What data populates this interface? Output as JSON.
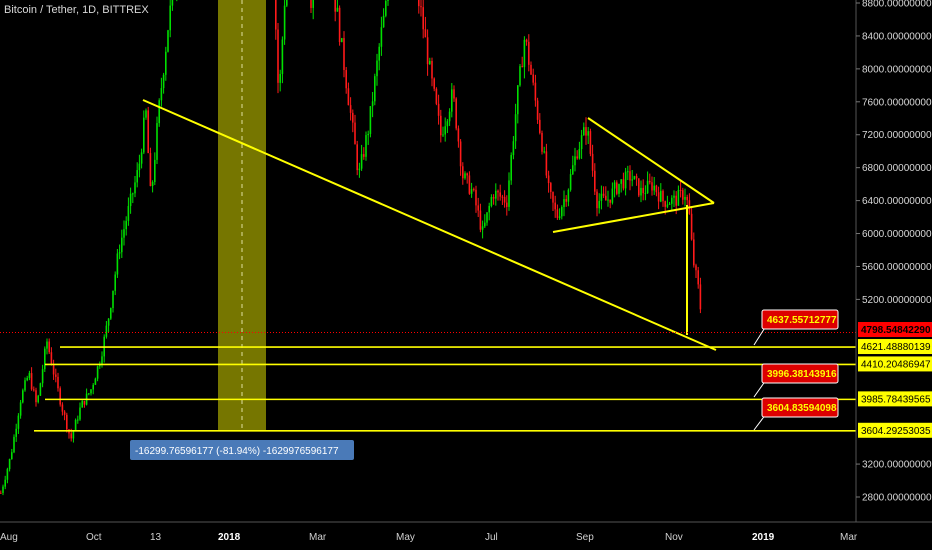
{
  "header": {
    "title": "Bitcoin / Tether, 1D, BITTREX"
  },
  "chart_data": {
    "type": "candlestick",
    "instrument": "Bitcoin / Tether, 1D, BITTREX",
    "x_tick_labels": [
      "Aug",
      "Oct",
      "13",
      "2018",
      "Mar",
      "May",
      "Jul",
      "Sep",
      "Nov",
      "2019",
      "Mar"
    ],
    "y_tick_labels": [
      "8800.00000000",
      "8400.00000000",
      "8000.00000000",
      "7600.00000000",
      "7200.00000000",
      "6800.00000000",
      "6400.00000000",
      "6000.00000000",
      "5600.00000000",
      "5200.00000000",
      "3200.00000000",
      "2800.00000000"
    ],
    "y_tick_values": [
      8800,
      8400,
      8000,
      7600,
      7200,
      6800,
      6400,
      6000,
      5600,
      5200,
      3200,
      2800
    ],
    "last_price": {
      "label": "4798.54842290",
      "value": 4798.5484229,
      "color": "#ff0000"
    },
    "horizontal_levels": [
      {
        "label": "4621.48880139",
        "value": 4621.48880139
      },
      {
        "label": "4410.20486947",
        "value": 4410.20486947
      },
      {
        "label": "3985.78439565",
        "value": 3985.78439565
      },
      {
        "label": "3604.29253035",
        "value": 3604.29253035
      }
    ],
    "callouts": [
      {
        "label": "4637.55712777",
        "value": 4637.55712777
      },
      {
        "label": "3996.38143916",
        "value": 3996.38143916
      },
      {
        "label": "3604.83594098",
        "value": 3604.83594098
      }
    ],
    "measurement_label": "-16299.76596177 (-81.94%) -1629976596177",
    "colors": {
      "up": "#00e000",
      "down": "#ff1a1a",
      "trendline": "#ffff00",
      "highlight_band": "#8b8b00",
      "callout_bg": "#dd0000",
      "measure_bg": "#4a7ab8",
      "background": "#000000"
    }
  }
}
